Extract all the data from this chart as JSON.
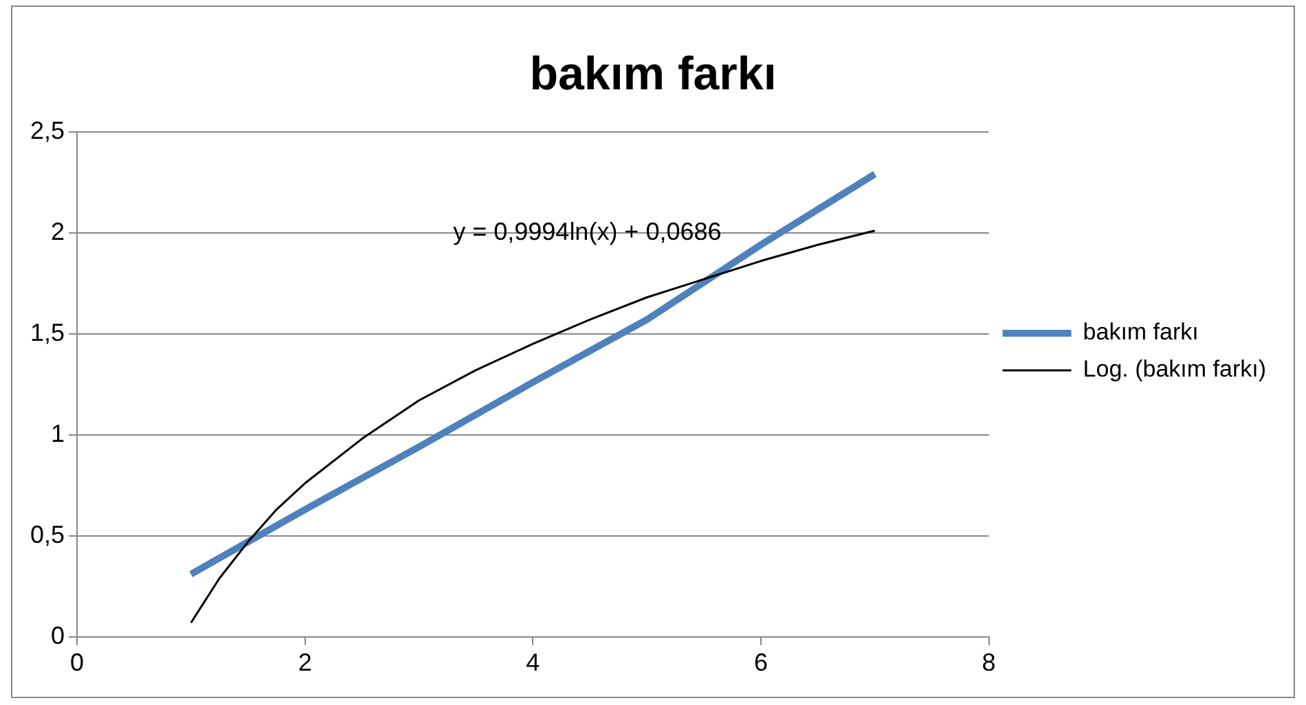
{
  "chart_data": {
    "type": "line",
    "title": "bakım farkı",
    "legend": "right",
    "grid": "y",
    "marker": "none",
    "xlim": [
      0,
      8
    ],
    "xticks": [
      0,
      2,
      4,
      6,
      8
    ],
    "ylim": [
      0,
      2.5
    ],
    "yticks": [
      0,
      {
        "value": 0.5,
        "label": "0,5"
      },
      1,
      {
        "value": 1.5,
        "label": "1,5"
      },
      2,
      {
        "value": 2.5,
        "label": "2,5"
      }
    ],
    "annotations": [
      "y = 0,9994ln(x) + 0,0686"
    ],
    "series": [
      {
        "name": "bakım farkı",
        "color": "#4f81bd",
        "x": [
          1,
          2,
          3,
          4,
          5,
          6,
          7
        ],
        "values": [
          0.31,
          0.63,
          0.94,
          1.26,
          1.57,
          1.94,
          2.29
        ]
      },
      {
        "name": "Log. (bakım farkı)",
        "color": "#000000",
        "x": [
          1,
          1.25,
          1.5,
          1.75,
          2,
          2.5,
          3,
          3.5,
          4,
          4.5,
          5,
          5.5,
          6,
          6.5,
          7
        ],
        "values": [
          0.07,
          0.29,
          0.47,
          0.63,
          0.76,
          0.98,
          1.17,
          1.32,
          1.45,
          1.57,
          1.68,
          1.77,
          1.86,
          1.94,
          2.01
        ]
      }
    ]
  }
}
